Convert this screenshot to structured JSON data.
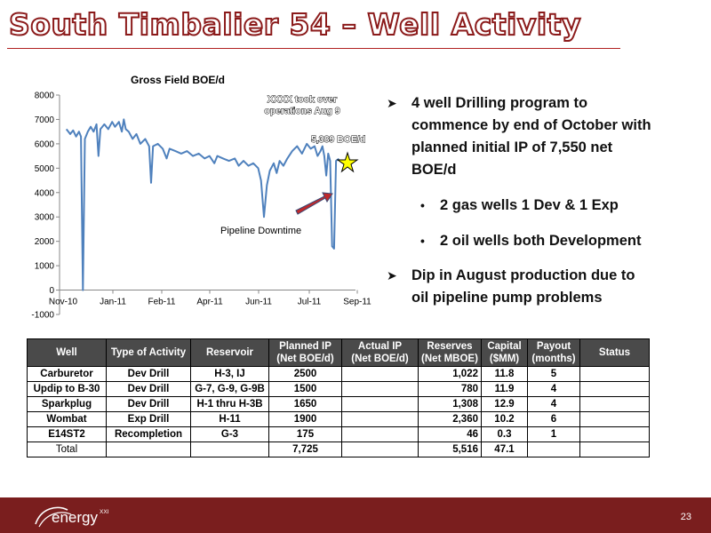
{
  "slide": {
    "title": "South Timbalier 54 – Well Activity",
    "page_number": "23",
    "logo_text": "energy",
    "logo_superscript": "XXI"
  },
  "bullets": {
    "b1": [
      "4 well Drilling program to",
      "commence by end of October with",
      "planned initial IP of 7,550 net",
      "BOE/d"
    ],
    "sub1": "2 gas wells 1 Dev & 1 Exp",
    "sub2": "2 oil wells both Development",
    "b2": [
      "Dip in August production due to",
      "oil pipeline pump problems"
    ]
  },
  "table": {
    "headers": [
      [
        "Well"
      ],
      [
        "Type of Activity"
      ],
      [
        "Reservoir"
      ],
      [
        "Planned IP",
        "(Net BOE/d)"
      ],
      [
        "Actual IP",
        "(Net BOE/d)"
      ],
      [
        "Reserves",
        "(Net MBOE)"
      ],
      [
        "Capital",
        "($MM)"
      ],
      [
        "Payout",
        "(months)"
      ],
      [
        "Status"
      ]
    ],
    "rows": [
      [
        "Carburetor",
        "Dev Drill",
        "H-3, IJ",
        "2500",
        "",
        "1,022",
        "11.8",
        "5",
        ""
      ],
      [
        "Updip to B-30",
        "Dev Drill",
        "G-7, G-9, G-9B",
        "1500",
        "",
        "780",
        "11.9",
        "4",
        ""
      ],
      [
        "Sparkplug",
        "Dev Drill",
        "H-1 thru H-3B",
        "1650",
        "",
        "1,308",
        "12.9",
        "4",
        ""
      ],
      [
        "Wombat",
        "Exp Drill",
        "H-11",
        "1900",
        "",
        "2,360",
        "10.2",
        "6",
        ""
      ],
      [
        "E14ST2",
        "Recompletion",
        "G-3",
        "175",
        "",
        "46",
        "0.3",
        "1",
        ""
      ]
    ],
    "total": [
      "Total",
      "",
      "",
      "7,725",
      "",
      "5,516",
      "47.1",
      "",
      ""
    ]
  },
  "chart_data": {
    "type": "line",
    "title": "Gross Field BOE/d",
    "xlabel": "",
    "ylabel": "",
    "x_ticks": [
      "Nov-10",
      "Jan-11",
      "Feb-11",
      "Apr-11",
      "Jun-11",
      "Jul-11",
      "Sep-11"
    ],
    "y_ticks": [
      -1000,
      0,
      1000,
      2000,
      3000,
      4000,
      5000,
      6000,
      7000,
      8000
    ],
    "ylim": [
      -1000,
      8000
    ],
    "xlim": [
      "2010-11-01",
      "2011-09-01"
    ],
    "grid": false,
    "series_color": "#4f81bd",
    "series": [
      {
        "values": [
          [
            "2010-11-08",
            6600
          ],
          [
            "2010-11-12",
            6400
          ],
          [
            "2010-11-15",
            6550
          ],
          [
            "2010-11-18",
            6300
          ],
          [
            "2010-11-21",
            6500
          ],
          [
            "2010-11-23",
            6300
          ],
          [
            "2010-11-25",
            0
          ],
          [
            "2010-11-27",
            6200
          ],
          [
            "2010-11-30",
            6500
          ],
          [
            "2010-12-03",
            6700
          ],
          [
            "2010-12-06",
            6500
          ],
          [
            "2010-12-09",
            6800
          ],
          [
            "2010-12-11",
            5500
          ],
          [
            "2010-12-13",
            6600
          ],
          [
            "2010-12-17",
            6800
          ],
          [
            "2010-12-21",
            6600
          ],
          [
            "2010-12-25",
            6900
          ],
          [
            "2010-12-28",
            6700
          ],
          [
            "2011-01-01",
            6900
          ],
          [
            "2011-01-04",
            6500
          ],
          [
            "2011-01-06",
            7000
          ],
          [
            "2011-01-08",
            6600
          ],
          [
            "2011-01-11",
            6500
          ],
          [
            "2011-01-15",
            6200
          ],
          [
            "2011-01-19",
            6400
          ],
          [
            "2011-01-23",
            6000
          ],
          [
            "2011-01-28",
            6200
          ],
          [
            "2011-02-01",
            5900
          ],
          [
            "2011-02-03",
            4400
          ],
          [
            "2011-02-05",
            5900
          ],
          [
            "2011-02-10",
            6000
          ],
          [
            "2011-02-15",
            5800
          ],
          [
            "2011-02-19",
            5400
          ],
          [
            "2011-02-22",
            5800
          ],
          [
            "2011-02-28",
            5700
          ],
          [
            "2011-03-06",
            5600
          ],
          [
            "2011-03-12",
            5700
          ],
          [
            "2011-03-18",
            5500
          ],
          [
            "2011-03-24",
            5600
          ],
          [
            "2011-03-30",
            5400
          ],
          [
            "2011-04-04",
            5500
          ],
          [
            "2011-04-09",
            5200
          ],
          [
            "2011-04-12",
            5500
          ],
          [
            "2011-04-18",
            5400
          ],
          [
            "2011-04-24",
            5300
          ],
          [
            "2011-04-30",
            5400
          ],
          [
            "2011-05-04",
            5100
          ],
          [
            "2011-05-09",
            5300
          ],
          [
            "2011-05-14",
            5100
          ],
          [
            "2011-05-19",
            5200
          ],
          [
            "2011-05-24",
            5000
          ],
          [
            "2011-05-27",
            4500
          ],
          [
            "2011-05-30",
            3000
          ],
          [
            "2011-06-02",
            4300
          ],
          [
            "2011-06-05",
            4900
          ],
          [
            "2011-06-09",
            5200
          ],
          [
            "2011-06-12",
            4800
          ],
          [
            "2011-06-15",
            5300
          ],
          [
            "2011-06-19",
            5100
          ],
          [
            "2011-06-23",
            5400
          ],
          [
            "2011-06-28",
            5700
          ],
          [
            "2011-07-03",
            5900
          ],
          [
            "2011-07-08",
            5600
          ],
          [
            "2011-07-13",
            6000
          ],
          [
            "2011-07-17",
            5800
          ],
          [
            "2011-07-21",
            5900
          ],
          [
            "2011-07-24",
            5500
          ],
          [
            "2011-07-27",
            5700
          ],
          [
            "2011-07-29",
            5900
          ],
          [
            "2011-07-31",
            5500
          ],
          [
            "2011-08-02",
            4700
          ],
          [
            "2011-08-04",
            5600
          ],
          [
            "2011-08-06",
            5300
          ],
          [
            "2011-08-08",
            1800
          ],
          [
            "2011-08-10",
            1700
          ],
          [
            "2011-08-12",
            5300
          ],
          [
            "2011-08-15",
            5389
          ]
        ]
      }
    ],
    "annotations": {
      "takeover": [
        "XXXX took over",
        "operations Aug 9"
      ],
      "last_value": "5,389 BOE/d",
      "downtime": "Pipeline Downtime"
    }
  }
}
